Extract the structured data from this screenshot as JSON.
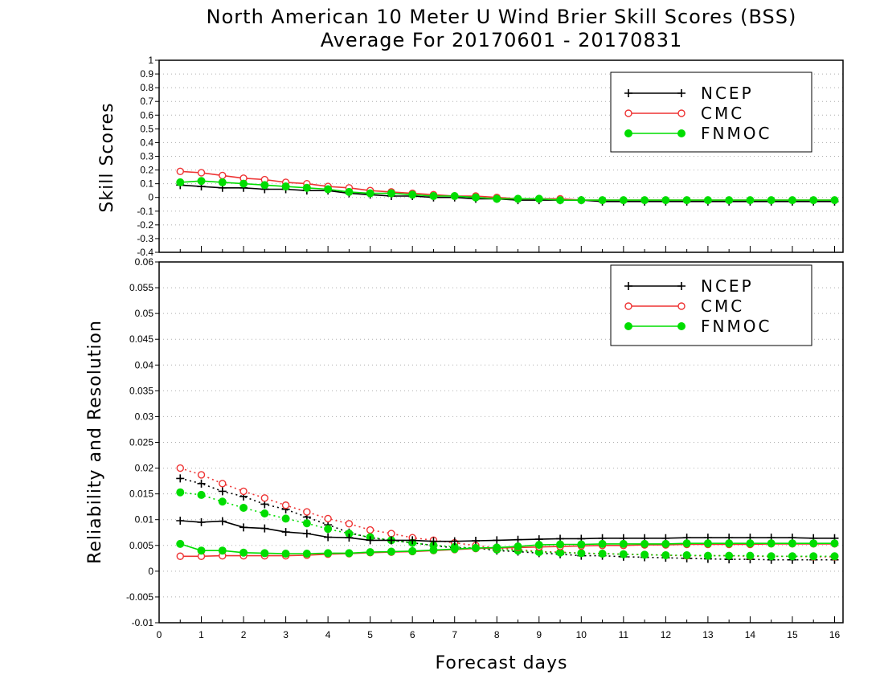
{
  "colors": {
    "NCEP": "#000000",
    "CMC": "#ee3333",
    "FNMOC": "#00dd00",
    "grid": "#b0b0b0"
  },
  "chart_data": [
    {
      "type": "line",
      "title": "North American 10 Meter U Wind Brier Skill Scores (BSS)",
      "subtitle": "Average For 20170601 - 20170831",
      "xlabel": "",
      "ylabel": "Skill Scores",
      "xlim": [
        0,
        16.2
      ],
      "ylim": [
        -0.4,
        1
      ],
      "yticks": [
        "1",
        "0.9",
        "0.8",
        "0.7",
        "0.6",
        "0.5",
        "0.4",
        "0.3",
        "0.2",
        "0.1",
        "0",
        "-0.1",
        "-0.2",
        "-0.3",
        "-0.4"
      ],
      "grid": true,
      "legend": {
        "position": "top-right",
        "entries": [
          "NCEP",
          "CMC",
          "FNMOC"
        ]
      },
      "x": [
        0.5,
        1,
        1.5,
        2,
        2.5,
        3,
        3.5,
        4,
        4.5,
        5,
        5.5,
        6,
        6.5,
        7,
        7.5,
        8,
        8.5,
        9,
        9.5,
        10,
        10.5,
        11,
        11.5,
        12,
        12.5,
        13,
        13.5,
        14,
        14.5,
        15,
        15.5,
        16
      ],
      "series": [
        {
          "name": "NCEP",
          "marker": "plus",
          "style": "solid",
          "values": [
            0.09,
            0.08,
            0.07,
            0.07,
            0.06,
            0.06,
            0.05,
            0.05,
            0.03,
            0.02,
            0.01,
            0.01,
            0.0,
            0.0,
            -0.01,
            -0.01,
            -0.02,
            -0.02,
            -0.02,
            -0.02,
            -0.03,
            -0.03,
            -0.03,
            -0.03,
            -0.03,
            -0.03,
            -0.03,
            -0.03,
            -0.03,
            -0.03,
            -0.03,
            -0.03
          ]
        },
        {
          "name": "CMC",
          "marker": "open-circle",
          "style": "solid",
          "values": [
            0.19,
            0.18,
            0.16,
            0.14,
            0.13,
            0.11,
            0.1,
            0.08,
            0.07,
            0.05,
            0.04,
            0.03,
            0.02,
            0.01,
            0.01,
            0.0,
            -0.01,
            -0.01,
            -0.01,
            -0.02,
            -0.02,
            -0.02,
            -0.02,
            -0.02,
            -0.02,
            -0.02,
            -0.02,
            -0.02,
            -0.02,
            -0.02,
            -0.02,
            -0.02
          ]
        },
        {
          "name": "FNMOC",
          "marker": "filled-circle",
          "style": "solid",
          "values": [
            0.11,
            0.12,
            0.11,
            0.1,
            0.09,
            0.08,
            0.07,
            0.06,
            0.04,
            0.03,
            0.03,
            0.02,
            0.01,
            0.01,
            0.0,
            -0.01,
            -0.01,
            -0.01,
            -0.02,
            -0.02,
            -0.02,
            -0.02,
            -0.02,
            -0.02,
            -0.02,
            -0.02,
            -0.02,
            -0.02,
            -0.02,
            -0.02,
            -0.02,
            -0.02
          ]
        }
      ]
    },
    {
      "type": "line",
      "title": "",
      "xlabel": "Forecast days",
      "ylabel": "Reliability and Resolution",
      "xlim": [
        0,
        16.2
      ],
      "ylim": [
        -0.01,
        0.06
      ],
      "xticks": [
        "0",
        "1",
        "2",
        "3",
        "4",
        "5",
        "6",
        "7",
        "8",
        "9",
        "10",
        "11",
        "12",
        "13",
        "14",
        "15",
        "16"
      ],
      "yticks": [
        "0.06",
        "0.055",
        "0.05",
        "0.045",
        "0.04",
        "0.035",
        "0.03",
        "0.025",
        "0.02",
        "0.015",
        "0.01",
        "0.005",
        "0",
        "-0.005",
        "-0.01"
      ],
      "grid": true,
      "legend": {
        "position": "top-right",
        "entries": [
          "NCEP",
          "CMC",
          "FNMOC"
        ]
      },
      "x": [
        0.5,
        1,
        1.5,
        2,
        2.5,
        3,
        3.5,
        4,
        4.5,
        5,
        5.5,
        6,
        6.5,
        7,
        7.5,
        8,
        8.5,
        9,
        9.5,
        10,
        10.5,
        11,
        11.5,
        12,
        12.5,
        13,
        13.5,
        14,
        14.5,
        15,
        15.5,
        16
      ],
      "series": [
        {
          "name": "NCEP",
          "marker": "plus",
          "style": "dotted",
          "values": [
            0.018,
            0.017,
            0.0155,
            0.0145,
            0.013,
            0.012,
            0.0105,
            0.009,
            0.0075,
            0.0065,
            0.006,
            0.0055,
            0.005,
            0.0045,
            0.0045,
            0.004,
            0.0038,
            0.0035,
            0.0033,
            0.003,
            0.003,
            0.0028,
            0.0027,
            0.0026,
            0.0025,
            0.0024,
            0.0023,
            0.0023,
            0.0022,
            0.0022,
            0.0022,
            0.0022
          ]
        },
        {
          "name": "CMC",
          "marker": "open-circle",
          "style": "dotted",
          "values": [
            0.02,
            0.0187,
            0.017,
            0.0155,
            0.0142,
            0.0128,
            0.0115,
            0.0102,
            0.0092,
            0.008,
            0.0073,
            0.0065,
            0.006,
            0.0055,
            0.005,
            0.0045,
            0.0042,
            0.0038,
            0.0037,
            0.0035,
            0.0034,
            0.0033,
            0.0032,
            0.0031,
            0.003,
            0.003,
            0.003,
            0.0029,
            0.0029,
            0.0029,
            0.0028,
            0.0028
          ]
        },
        {
          "name": "FNMOC",
          "marker": "filled-circle",
          "style": "dotted",
          "values": [
            0.0153,
            0.0148,
            0.0135,
            0.0123,
            0.0112,
            0.0102,
            0.0093,
            0.0082,
            0.0073,
            0.0066,
            0.006,
            0.0055,
            0.005,
            0.0047,
            0.0045,
            0.0042,
            0.004,
            0.0037,
            0.0036,
            0.0035,
            0.0034,
            0.0033,
            0.0032,
            0.0031,
            0.0031,
            0.003,
            0.003,
            0.003,
            0.0029,
            0.0029,
            0.0029,
            0.0029
          ]
        },
        {
          "name": "NCEP",
          "marker": "plus",
          "style": "solid",
          "values": [
            0.0098,
            0.0095,
            0.0097,
            0.0085,
            0.0083,
            0.0076,
            0.0073,
            0.0066,
            0.0065,
            0.006,
            0.006,
            0.006,
            0.0058,
            0.0058,
            0.0059,
            0.006,
            0.0061,
            0.0062,
            0.0063,
            0.0063,
            0.0064,
            0.0064,
            0.0064,
            0.0064,
            0.0065,
            0.0065,
            0.0065,
            0.0065,
            0.0065,
            0.0065,
            0.0064,
            0.0064
          ]
        },
        {
          "name": "CMC",
          "marker": "open-circle",
          "style": "solid",
          "values": [
            0.0029,
            0.0029,
            0.003,
            0.003,
            0.003,
            0.003,
            0.0031,
            0.0033,
            0.0034,
            0.0036,
            0.0037,
            0.0038,
            0.004,
            0.0042,
            0.0044,
            0.0045,
            0.0046,
            0.0047,
            0.0048,
            0.0049,
            0.005,
            0.005,
            0.0051,
            0.0051,
            0.0052,
            0.0052,
            0.0052,
            0.0052,
            0.0053,
            0.0053,
            0.0053,
            0.0053
          ]
        },
        {
          "name": "FNMOC",
          "marker": "filled-circle",
          "style": "solid",
          "values": [
            0.0053,
            0.004,
            0.004,
            0.0036,
            0.0035,
            0.0034,
            0.0034,
            0.0035,
            0.0035,
            0.0037,
            0.0038,
            0.0039,
            0.0041,
            0.0043,
            0.0045,
            0.0046,
            0.0048,
            0.0051,
            0.0052,
            0.0052,
            0.0053,
            0.0053,
            0.0053,
            0.0053,
            0.0054,
            0.0054,
            0.0054,
            0.0054,
            0.0054,
            0.0054,
            0.0054,
            0.0054
          ]
        }
      ]
    }
  ]
}
